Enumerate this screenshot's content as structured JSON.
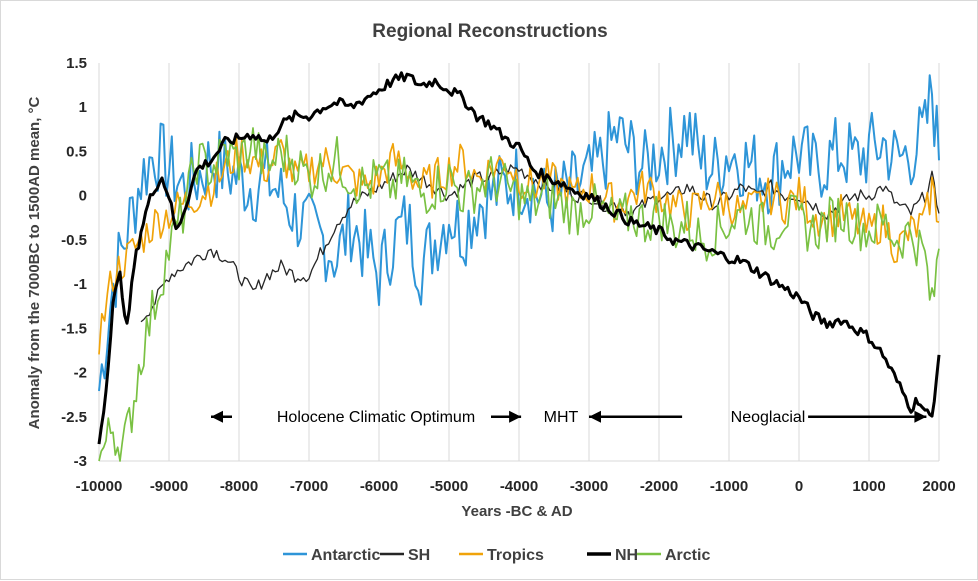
{
  "chart_data": {
    "type": "line",
    "title": "Regional Reconstructions",
    "xlabel": "Years -BC & AD",
    "ylabel": "Anomaly from the 7000BC to 1500AD mean, °C",
    "xlim": [
      -10000,
      2000
    ],
    "ylim": [
      -3,
      1.5
    ],
    "x_ticks": [
      -10000,
      -9000,
      -8000,
      -7000,
      -6000,
      -5000,
      -4000,
      -3000,
      -2000,
      -1000,
      0,
      1000,
      2000
    ],
    "x_tick_labels": [
      "-10000",
      "-9000",
      "-8000",
      "-7000",
      "-6000",
      "-5000",
      "-4000",
      "-3000",
      "-2000",
      "-1000",
      "0",
      "1000",
      "2000"
    ],
    "y_ticks": [
      -3,
      -2.5,
      -2,
      -1.5,
      -1,
      -0.5,
      0,
      0.5,
      1,
      1.5
    ],
    "y_tick_labels": [
      "-3",
      "-2.5",
      "-2",
      "-1.5",
      "-1",
      "-0.5",
      "0",
      "0.5",
      "1",
      "1.5"
    ],
    "grid": "vertical",
    "legend_position": "bottom",
    "annotations": [
      {
        "text": "Holocene Climatic Optimum",
        "x_from": -8100,
        "x_to": -4000,
        "y": -2.5
      },
      {
        "text": "MHT",
        "x_from": -4000,
        "x_to": -3000,
        "y": -2.5
      },
      {
        "text": "Neoglacial",
        "x_from": -3000,
        "x_to": 2000,
        "y": -2.5
      }
    ],
    "series": [
      {
        "name": "Antarctic",
        "color": "#2e95d8",
        "width": 2,
        "x": [
          -10000,
          -9800,
          -9600,
          -9400,
          -9200,
          -9000,
          -8800,
          -8600,
          -8400,
          -8200,
          -8000,
          -7800,
          -7600,
          -7400,
          -7200,
          -7000,
          -6800,
          -6600,
          -6400,
          -6200,
          -6000,
          -5800,
          -5600,
          -5400,
          -5200,
          -5000,
          -4800,
          -4600,
          -4400,
          -4200,
          -4000,
          -3800,
          -3600,
          -3400,
          -3200,
          -3000,
          -2800,
          -2600,
          -2400,
          -2200,
          -2000,
          -1800,
          -1600,
          -1400,
          -1200,
          -1000,
          -800,
          -600,
          -400,
          -200,
          0,
          200,
          400,
          600,
          800,
          1000,
          1200,
          1400,
          1600,
          1800,
          1900,
          2000
        ],
        "values": [
          -2.2,
          -1.0,
          -0.4,
          0.2,
          0.5,
          0.3,
          0.1,
          0.2,
          0.4,
          0.3,
          0.2,
          0.1,
          0.2,
          0.0,
          -0.2,
          -0.4,
          -0.5,
          -0.7,
          -0.3,
          -0.6,
          -0.9,
          -0.5,
          -0.3,
          -0.8,
          -0.5,
          -0.2,
          -0.4,
          -0.1,
          0.0,
          0.1,
          0.2,
          0.1,
          -0.1,
          0.0,
          0.1,
          0.2,
          0.4,
          0.7,
          0.5,
          0.3,
          0.5,
          0.6,
          0.8,
          0.4,
          0.3,
          0.5,
          0.4,
          0.3,
          0.2,
          0.4,
          0.5,
          0.3,
          0.4,
          0.5,
          0.4,
          0.5,
          0.6,
          0.4,
          0.5,
          0.7,
          1.2,
          0.4
        ]
      },
      {
        "name": "SH",
        "color": "#262626",
        "width": 1.3,
        "x": [
          -9400,
          -9200,
          -9000,
          -8800,
          -8600,
          -8400,
          -8200,
          -8000,
          -7800,
          -7600,
          -7400,
          -7200,
          -7000,
          -6800,
          -6600,
          -6400,
          -6200,
          -6000,
          -5800,
          -5600,
          -5400,
          -5200,
          -5000,
          -4800,
          -4600,
          -4400,
          -4200,
          -4000,
          -3800,
          -3600,
          -3400,
          -3200,
          -3000,
          -2800,
          -2600,
          -2400,
          -2200,
          -2000,
          -1800,
          -1600,
          -1400,
          -1200,
          -1000,
          -800,
          -600,
          -400,
          -200,
          0,
          200,
          400,
          600,
          800,
          1000,
          1200,
          1400,
          1600,
          1800,
          1900,
          2000
        ],
        "values": [
          -1.4,
          -1.2,
          -0.9,
          -0.8,
          -0.7,
          -0.6,
          -0.7,
          -0.9,
          -1.1,
          -0.9,
          -0.8,
          -0.9,
          -0.9,
          -0.6,
          -0.3,
          -0.1,
          0.0,
          0.1,
          0.2,
          0.3,
          0.2,
          0.1,
          0.0,
          0.1,
          0.2,
          0.2,
          0.3,
          0.3,
          0.2,
          0.1,
          0.1,
          0.0,
          0.0,
          -0.1,
          -0.1,
          -0.2,
          -0.1,
          0.0,
          0.0,
          0.1,
          0.0,
          -0.1,
          0.0,
          0.1,
          0.0,
          0.1,
          0.0,
          0.0,
          -0.1,
          -0.2,
          -0.1,
          0.0,
          0.0,
          0.1,
          -0.1,
          -0.2,
          0.0,
          0.2,
          -0.2
        ]
      },
      {
        "name": "Tropics",
        "color": "#f0a30a",
        "width": 1.7,
        "x": [
          -10000,
          -9800,
          -9600,
          -9400,
          -9200,
          -9000,
          -8800,
          -8600,
          -8400,
          -8200,
          -8000,
          -7800,
          -7600,
          -7400,
          -7200,
          -7000,
          -6800,
          -6600,
          -6400,
          -6200,
          -6000,
          -5800,
          -5600,
          -5400,
          -5200,
          -5000,
          -4800,
          -4600,
          -4400,
          -4200,
          -4000,
          -3800,
          -3600,
          -3400,
          -3200,
          -3000,
          -2800,
          -2600,
          -2400,
          -2200,
          -2000,
          -1800,
          -1600,
          -1400,
          -1200,
          -1000,
          -800,
          -600,
          -400,
          -200,
          0,
          200,
          400,
          600,
          800,
          1000,
          1200,
          1400,
          1600,
          1800,
          1900,
          2000
        ],
        "values": [
          -1.6,
          -0.9,
          -0.7,
          -0.5,
          -0.3,
          -0.2,
          -0.1,
          0.0,
          0.1,
          0.3,
          0.5,
          0.4,
          0.3,
          0.5,
          0.2,
          0.3,
          0.4,
          0.3,
          0.2,
          0.1,
          0.2,
          0.4,
          0.3,
          0.1,
          0.2,
          0.3,
          0.4,
          0.2,
          0.3,
          0.4,
          0.2,
          0.1,
          0.2,
          0.1,
          0.0,
          0.1,
          0.0,
          -0.1,
          0.0,
          0.1,
          0.0,
          -0.1,
          -0.2,
          -0.1,
          0.0,
          -0.1,
          -0.2,
          -0.1,
          0.0,
          -0.1,
          0.0,
          -0.2,
          -0.3,
          -0.2,
          -0.3,
          -0.4,
          -0.3,
          -0.6,
          -0.4,
          -0.3,
          0.1,
          -0.3
        ]
      },
      {
        "name": "NH",
        "color": "#000000",
        "width": 3,
        "x": [
          -10000,
          -9900,
          -9800,
          -9700,
          -9600,
          -9500,
          -9400,
          -9300,
          -9200,
          -9100,
          -9000,
          -8900,
          -8800,
          -8600,
          -8400,
          -8200,
          -8000,
          -7800,
          -7600,
          -7400,
          -7200,
          -7000,
          -6800,
          -6600,
          -6400,
          -6200,
          -6000,
          -5800,
          -5600,
          -5400,
          -5200,
          -5000,
          -4800,
          -4600,
          -4400,
          -4200,
          -4000,
          -3800,
          -3600,
          -3400,
          -3200,
          -3000,
          -2800,
          -2600,
          -2400,
          -2200,
          -2000,
          -1800,
          -1600,
          -1400,
          -1200,
          -1000,
          -800,
          -600,
          -400,
          -200,
          0,
          200,
          400,
          600,
          800,
          1000,
          1200,
          1400,
          1600,
          1700,
          1800,
          1900,
          2000
        ],
        "values": [
          -2.8,
          -2.2,
          -1.2,
          -0.9,
          -1.5,
          -0.8,
          -0.4,
          -0.1,
          0.1,
          0.2,
          0.0,
          -0.4,
          -0.2,
          0.3,
          0.4,
          0.6,
          0.65,
          0.7,
          0.6,
          0.8,
          0.9,
          0.9,
          1.0,
          1.05,
          1.0,
          1.1,
          1.2,
          1.3,
          1.35,
          1.25,
          1.3,
          1.2,
          1.1,
          0.9,
          0.8,
          0.65,
          0.55,
          0.3,
          0.2,
          0.15,
          0.05,
          0.0,
          -0.1,
          -0.2,
          -0.3,
          -0.35,
          -0.4,
          -0.5,
          -0.55,
          -0.6,
          -0.65,
          -0.7,
          -0.75,
          -0.85,
          -0.95,
          -1.05,
          -1.15,
          -1.35,
          -1.45,
          -1.4,
          -1.5,
          -1.6,
          -1.8,
          -2.1,
          -2.4,
          -2.3,
          -2.45,
          -2.5,
          -1.8
        ]
      },
      {
        "name": "Arctic",
        "color": "#7ac143",
        "width": 1.7,
        "x": [
          -10000,
          -9900,
          -9800,
          -9700,
          -9600,
          -9500,
          -9400,
          -9200,
          -9000,
          -8800,
          -8600,
          -8400,
          -8200,
          -8000,
          -7800,
          -7600,
          -7400,
          -7200,
          -7000,
          -6800,
          -6600,
          -6400,
          -6200,
          -6000,
          -5800,
          -5600,
          -5400,
          -5200,
          -5000,
          -4800,
          -4600,
          -4400,
          -4200,
          -4000,
          -3800,
          -3600,
          -3400,
          -3200,
          -3000,
          -2800,
          -2600,
          -2400,
          -2200,
          -2000,
          -1800,
          -1600,
          -1400,
          -1200,
          -1000,
          -800,
          -600,
          -400,
          -200,
          0,
          200,
          400,
          600,
          800,
          1000,
          1200,
          1400,
          1600,
          1800,
          1900,
          2000
        ],
        "values": [
          -3.0,
          -2.8,
          -2.6,
          -2.9,
          -2.7,
          -2.3,
          -1.8,
          -1.2,
          -0.6,
          -0.2,
          0.4,
          0.3,
          0.5,
          0.4,
          0.6,
          0.3,
          0.5,
          0.4,
          0.2,
          0.3,
          0.4,
          0.2,
          0.1,
          0.2,
          0.1,
          0.2,
          0.0,
          0.1,
          0.2,
          0.0,
          0.1,
          0.2,
          0.1,
          0.0,
          -0.1,
          0.0,
          -0.1,
          -0.2,
          -0.1,
          -0.2,
          -0.3,
          -0.2,
          -0.3,
          -0.2,
          -0.4,
          -0.3,
          -0.5,
          -0.4,
          -0.3,
          -0.2,
          -0.3,
          -0.4,
          -0.2,
          -0.3,
          -0.4,
          -0.3,
          -0.2,
          -0.3,
          -0.4,
          -0.3,
          -0.5,
          -0.4,
          -0.7,
          -1.3,
          -0.6
        ]
      }
    ]
  }
}
